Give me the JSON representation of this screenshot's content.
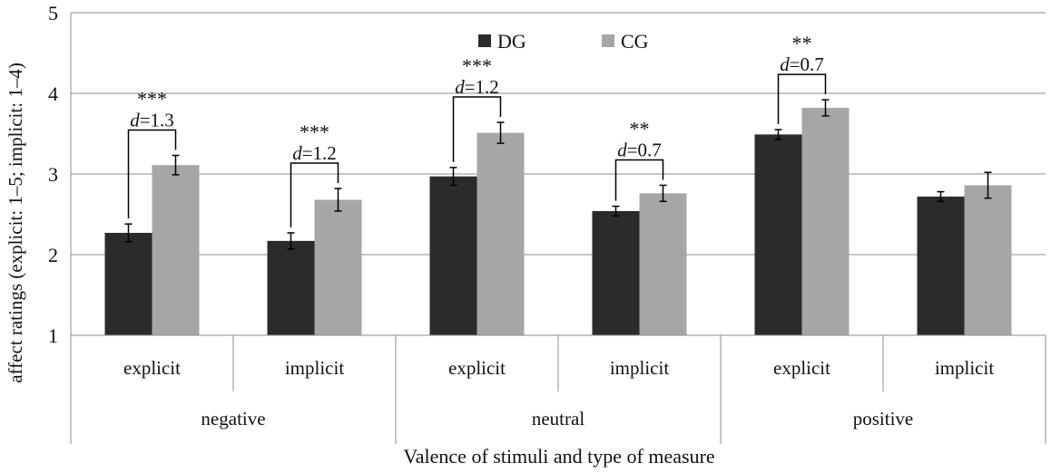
{
  "chart_data": {
    "type": "bar",
    "title": "",
    "xlabel": "Valence of stimuli and type of measure",
    "ylabel": "affect ratings (explicit: 1–5; implicit: 1–4)",
    "ylim": [
      1,
      5
    ],
    "yticks": [
      "1",
      "2",
      "3",
      "4",
      "5"
    ],
    "grid": true,
    "legend_position": "top-center",
    "groups": [
      {
        "label": "negative",
        "categories": [
          "explicit",
          "implicit"
        ]
      },
      {
        "label": "neutral",
        "categories": [
          "explicit",
          "implicit"
        ]
      },
      {
        "label": "positive",
        "categories": [
          "explicit",
          "implicit"
        ]
      }
    ],
    "categories": [
      "explicit",
      "implicit",
      "explicit",
      "implicit",
      "explicit",
      "implicit"
    ],
    "series": [
      {
        "name": "DG",
        "color": "#2b2b2b",
        "values": [
          2.27,
          2.17,
          2.97,
          2.54,
          3.49,
          2.72
        ],
        "errors": [
          0.11,
          0.1,
          0.11,
          0.06,
          0.06,
          0.06
        ]
      },
      {
        "name": "CG",
        "color": "#a6a6a6",
        "values": [
          3.11,
          2.68,
          3.51,
          2.76,
          3.82,
          2.86
        ],
        "errors": [
          0.12,
          0.14,
          0.13,
          0.1,
          0.1,
          0.16
        ]
      }
    ],
    "annotations": [
      {
        "category_index": 0,
        "stars": "***",
        "d_label": "d",
        "d_value": "=1.3"
      },
      {
        "category_index": 1,
        "stars": "***",
        "d_label": "d",
        "d_value": "=1.2"
      },
      {
        "category_index": 2,
        "stars": "***",
        "d_label": "d",
        "d_value": "=1.2"
      },
      {
        "category_index": 3,
        "stars": "**",
        "d_label": "d",
        "d_value": "=0.7"
      },
      {
        "category_index": 4,
        "stars": "**",
        "d_label": "d",
        "d_value": "=0.7"
      }
    ]
  }
}
